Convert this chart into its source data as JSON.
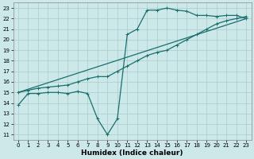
{
  "xlabel": "Humidex (Indice chaleur)",
  "background_color": "#cce8e8",
  "grid_color": "#aacccc",
  "line_color": "#1a6e6e",
  "xlim": [
    -0.5,
    23.5
  ],
  "ylim": [
    10.5,
    23.5
  ],
  "xticks": [
    0,
    1,
    2,
    3,
    4,
    5,
    6,
    7,
    8,
    9,
    10,
    11,
    12,
    13,
    14,
    15,
    16,
    17,
    18,
    19,
    20,
    21,
    22,
    23
  ],
  "yticks": [
    11,
    12,
    13,
    14,
    15,
    16,
    17,
    18,
    19,
    20,
    21,
    22,
    23
  ],
  "line1_x": [
    0,
    1,
    2,
    3,
    4,
    5,
    6,
    7,
    8,
    9,
    10,
    11,
    12,
    13,
    14,
    15,
    16,
    17,
    18,
    19,
    20,
    21,
    22,
    23
  ],
  "line1_y": [
    13.8,
    14.9,
    14.9,
    15.0,
    15.0,
    14.9,
    15.1,
    14.9,
    12.5,
    11.0,
    12.5,
    20.5,
    21.0,
    22.8,
    22.8,
    23.0,
    22.8,
    22.7,
    22.3,
    22.3,
    22.2,
    22.3,
    22.3,
    22.0
  ],
  "line2_x": [
    0,
    1,
    2,
    3,
    4,
    5,
    6,
    7,
    8,
    9,
    10,
    11,
    12,
    13,
    14,
    15,
    16,
    17,
    18,
    19,
    20,
    21,
    22,
    23
  ],
  "line2_y": [
    15.0,
    15.2,
    15.4,
    15.5,
    15.6,
    15.7,
    16.0,
    16.3,
    16.5,
    16.5,
    17.0,
    17.5,
    18.0,
    18.5,
    18.8,
    19.0,
    19.5,
    20.0,
    20.5,
    21.0,
    21.5,
    21.8,
    22.0,
    22.2
  ],
  "line3_x": [
    0,
    23
  ],
  "line3_y": [
    15.0,
    22.0
  ],
  "marker_size": 2.5,
  "linewidth": 0.9,
  "tick_fontsize": 5.0,
  "xlabel_fontsize": 6.5
}
